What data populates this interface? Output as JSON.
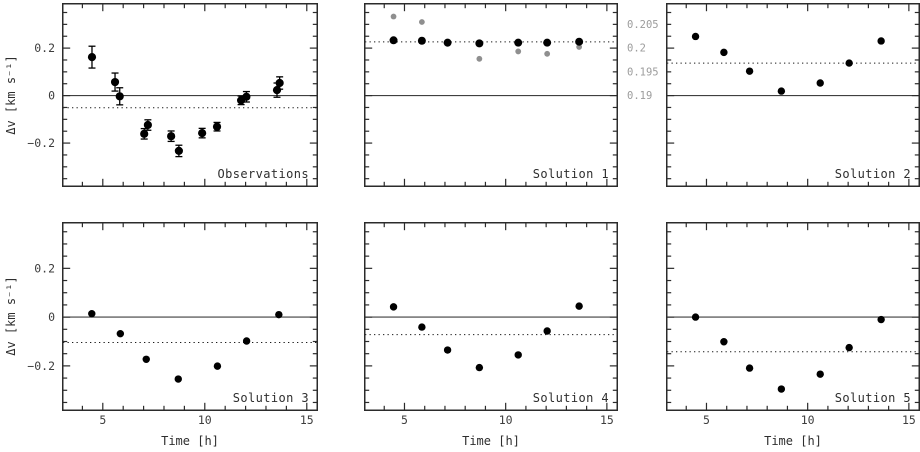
{
  "figure": {
    "ylabel": "Δv [km s⁻¹]",
    "xlabel": "Time [h]"
  },
  "chart_data": [
    {
      "type": "scatter",
      "label": "Observations",
      "xlabel": "Time [h]",
      "ylabel": "Δv [km s⁻¹]",
      "xlim": [
        3.0,
        15.55
      ],
      "ylim": [
        -0.385,
        0.39
      ],
      "x_major_ticks": [
        5,
        10,
        15
      ],
      "x_tick_labels": [
        "5",
        "10",
        "15"
      ],
      "x_minor_step": 1,
      "y_tick_labels": [
        {
          "v": 0.2,
          "label": "0.2"
        },
        {
          "v": 0,
          "label": "0"
        },
        {
          "v": -0.2,
          "label": "−0.2"
        }
      ],
      "y_minor_step": 0.05,
      "show_x_tick_labels": false,
      "show_y_tick_labels": true,
      "grid": false,
      "solid_line_y": 0,
      "dotted_line_y": -0.051,
      "series": [
        {
          "name": "observed-velocities",
          "color": "#000000",
          "radius": 4.1,
          "error_bars": true,
          "x": [
            4.47,
            5.6,
            5.83,
            7.03,
            7.21,
            8.35,
            8.73,
            9.87,
            10.6,
            11.78,
            12.04,
            13.54,
            13.67
          ],
          "y": [
            0.162,
            0.057,
            -0.003,
            -0.161,
            -0.124,
            -0.171,
            -0.233,
            -0.158,
            -0.131,
            -0.02,
            -0.005,
            0.023,
            0.053
          ],
          "err": [
            0.046,
            0.038,
            0.036,
            0.022,
            0.022,
            0.022,
            0.024,
            0.02,
            0.018,
            0.018,
            0.022,
            0.03,
            0.026
          ]
        }
      ]
    },
    {
      "type": "scatter",
      "label": "Solution 1",
      "xlim": [
        3.0,
        15.55
      ],
      "ylim": [
        -0.385,
        0.39
      ],
      "x_major_ticks": [
        5,
        10,
        15
      ],
      "x_tick_labels": [
        "5",
        "10",
        "15"
      ],
      "x_minor_step": 1,
      "y_tick_labels": [
        {
          "v": 0.2,
          "label": "0.2"
        },
        {
          "v": 0,
          "label": "0"
        },
        {
          "v": -0.2,
          "label": "−0.2"
        }
      ],
      "y_minor_step": 0.05,
      "show_x_tick_labels": false,
      "show_y_tick_labels": false,
      "grid": false,
      "solid_line_y": 0,
      "dotted_line_y": 0.226,
      "right_axis": {
        "color": "#9c9c9c",
        "ticks": [
          {
            "label": "0.205",
            "left_value": 0.3
          },
          {
            "label": "0.2",
            "left_value": 0.2
          },
          {
            "label": "0.195",
            "left_value": 0.1
          },
          {
            "label": "0.19",
            "left_value": 0.0
          }
        ]
      },
      "series": [
        {
          "name": "gray-secondary-points",
          "color": "#8f8f8f",
          "radius": 2.9,
          "error_bars": false,
          "x": [
            4.46,
            5.86,
            7.13,
            8.7,
            10.62,
            12.05,
            13.63
          ],
          "y": [
            0.333,
            0.31,
            0.218,
            0.155,
            0.186,
            0.176,
            0.205
          ]
        },
        {
          "name": "solution-1-points",
          "color": "#000000",
          "radius": 4.0,
          "error_bars": false,
          "x": [
            4.46,
            5.86,
            7.13,
            8.7,
            10.62,
            12.05,
            13.63
          ],
          "y": [
            0.233,
            0.231,
            0.223,
            0.22,
            0.223,
            0.223,
            0.227
          ]
        }
      ]
    },
    {
      "type": "scatter",
      "label": "Solution 2",
      "xlim": [
        3.0,
        15.55
      ],
      "ylim": [
        -0.385,
        0.39
      ],
      "x_major_ticks": [
        5,
        10,
        15
      ],
      "x_tick_labels": [
        "5",
        "10",
        "15"
      ],
      "x_minor_step": 1,
      "y_tick_labels": [
        {
          "v": 0.2,
          "label": "0.2"
        },
        {
          "v": 0,
          "label": "0"
        },
        {
          "v": -0.2,
          "label": "−0.2"
        }
      ],
      "y_minor_step": 0.05,
      "show_x_tick_labels": false,
      "show_y_tick_labels": false,
      "grid": false,
      "solid_line_y": 0,
      "dotted_line_y": 0.137,
      "series": [
        {
          "name": "solution-2-points",
          "color": "#000000",
          "radius": 3.7,
          "error_bars": false,
          "x": [
            4.46,
            5.86,
            7.13,
            8.7,
            10.62,
            12.05,
            13.63
          ],
          "y": [
            0.249,
            0.182,
            0.103,
            0.019,
            0.053,
            0.137,
            0.23
          ]
        }
      ]
    },
    {
      "type": "scatter",
      "label": "Solution 3",
      "xlim": [
        3.0,
        15.55
      ],
      "ylim": [
        -0.385,
        0.39
      ],
      "x_major_ticks": [
        5,
        10,
        15
      ],
      "x_tick_labels": [
        "5",
        "10",
        "15"
      ],
      "x_minor_step": 1,
      "y_tick_labels": [
        {
          "v": 0.2,
          "label": "0.2"
        },
        {
          "v": 0,
          "label": "0"
        },
        {
          "v": -0.2,
          "label": "−0.2"
        }
      ],
      "y_minor_step": 0.05,
      "show_x_tick_labels": true,
      "show_y_tick_labels": true,
      "grid": false,
      "solid_line_y": 0,
      "dotted_line_y": -0.104,
      "series": [
        {
          "name": "solution-3-points",
          "color": "#000000",
          "radius": 3.7,
          "error_bars": false,
          "x": [
            4.46,
            5.86,
            7.13,
            8.7,
            10.62,
            12.05,
            13.63
          ],
          "y": [
            0.014,
            -0.068,
            -0.173,
            -0.254,
            -0.201,
            -0.098,
            0.01
          ]
        }
      ]
    },
    {
      "type": "scatter",
      "label": "Solution 4",
      "xlim": [
        3.0,
        15.55
      ],
      "ylim": [
        -0.385,
        0.39
      ],
      "x_major_ticks": [
        5,
        10,
        15
      ],
      "x_tick_labels": [
        "5",
        "10",
        "15"
      ],
      "x_minor_step": 1,
      "y_tick_labels": [
        {
          "v": 0.2,
          "label": "0.2"
        },
        {
          "v": 0,
          "label": "0"
        },
        {
          "v": -0.2,
          "label": "−0.2"
        }
      ],
      "y_minor_step": 0.05,
      "show_x_tick_labels": true,
      "show_y_tick_labels": false,
      "grid": false,
      "solid_line_y": 0,
      "dotted_line_y": -0.072,
      "series": [
        {
          "name": "solution-4-points",
          "color": "#000000",
          "radius": 3.7,
          "error_bars": false,
          "x": [
            4.46,
            5.86,
            7.13,
            8.7,
            10.62,
            12.05,
            13.63
          ],
          "y": [
            0.042,
            -0.041,
            -0.135,
            -0.207,
            -0.155,
            -0.057,
            0.045
          ]
        }
      ]
    },
    {
      "type": "scatter",
      "label": "Solution 5",
      "xlim": [
        3.0,
        15.55
      ],
      "ylim": [
        -0.385,
        0.39
      ],
      "x_major_ticks": [
        5,
        10,
        15
      ],
      "x_tick_labels": [
        "5",
        "10",
        "15"
      ],
      "x_minor_step": 1,
      "y_tick_labels": [
        {
          "v": 0.2,
          "label": "0.2"
        },
        {
          "v": 0,
          "label": "0"
        },
        {
          "v": -0.2,
          "label": "−0.2"
        }
      ],
      "y_minor_step": 0.05,
      "show_x_tick_labels": true,
      "show_y_tick_labels": false,
      "grid": false,
      "solid_line_y": 0,
      "dotted_line_y": -0.142,
      "series": [
        {
          "name": "solution-5-points",
          "color": "#000000",
          "radius": 3.7,
          "error_bars": false,
          "x": [
            4.46,
            5.86,
            7.13,
            8.7,
            10.62,
            12.05,
            13.63
          ],
          "y": [
            0.0,
            -0.101,
            -0.209,
            -0.295,
            -0.234,
            -0.125,
            -0.01
          ]
        }
      ]
    }
  ],
  "colors": {
    "ink": "#2b2b2b",
    "zero_line": "#3f3f3f",
    "dotted_line": "#1a1a1a",
    "gray_points": "#8f8f8f",
    "right_axis_labels": "#9c9c9c",
    "background": "#ffffff"
  }
}
